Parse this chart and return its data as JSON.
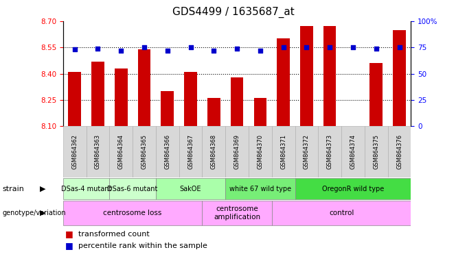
{
  "title": "GDS4499 / 1635687_at",
  "samples": [
    "GSM864362",
    "GSM864363",
    "GSM864364",
    "GSM864365",
    "GSM864366",
    "GSM864367",
    "GSM864368",
    "GSM864369",
    "GSM864370",
    "GSM864371",
    "GSM864372",
    "GSM864373",
    "GSM864374",
    "GSM864375",
    "GSM864376"
  ],
  "bar_values": [
    8.41,
    8.47,
    8.43,
    8.54,
    8.3,
    8.41,
    8.26,
    8.38,
    8.26,
    8.6,
    8.67,
    8.67,
    8.1,
    8.46,
    8.65
  ],
  "percentile_values": [
    73,
    74,
    72,
    75,
    72,
    75,
    72,
    74,
    72,
    75,
    75,
    75,
    75,
    74,
    75
  ],
  "ylim_left": [
    8.1,
    8.7
  ],
  "ylim_right": [
    0,
    100
  ],
  "left_ticks": [
    8.1,
    8.25,
    8.4,
    8.55,
    8.7
  ],
  "right_ticks": [
    0,
    25,
    50,
    75,
    100
  ],
  "right_tick_labels": [
    "0",
    "25",
    "50",
    "75",
    "100%"
  ],
  "bar_color": "#cc0000",
  "dot_color": "#0000cc",
  "xtick_bg": "#d8d8d8",
  "strain_defs": [
    {
      "start": 0,
      "end": 1,
      "label": "DSas-4 mutant",
      "color": "#ccffcc"
    },
    {
      "start": 2,
      "end": 3,
      "label": "DSas-6 mutant",
      "color": "#ccffcc"
    },
    {
      "start": 4,
      "end": 6,
      "label": "SakOE",
      "color": "#aaffaa"
    },
    {
      "start": 7,
      "end": 9,
      "label": "white 67 wild type",
      "color": "#77ee77"
    },
    {
      "start": 10,
      "end": 14,
      "label": "OregonR wild type",
      "color": "#44dd44"
    }
  ],
  "geno_defs": [
    {
      "start": 0,
      "end": 5,
      "label": "centrosome loss",
      "color": "#ffaaff"
    },
    {
      "start": 6,
      "end": 8,
      "label": "centrosome\namplification",
      "color": "#ffaaff"
    },
    {
      "start": 9,
      "end": 14,
      "label": "control",
      "color": "#ffaaff"
    }
  ]
}
